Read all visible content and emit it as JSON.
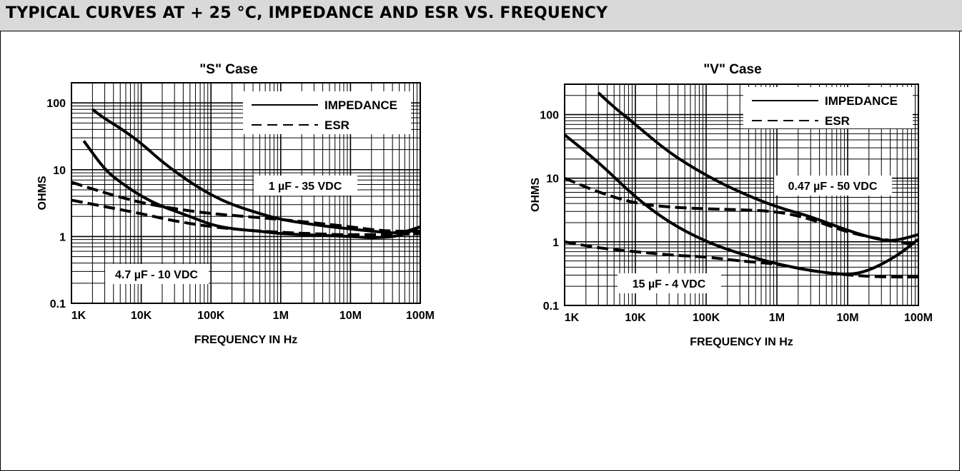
{
  "header": {
    "title": "TYPICAL CURVES AT + 25 °C, IMPEDANCE AND ESR VS. FREQUENCY"
  },
  "chart_data": [
    {
      "type": "line",
      "title": "\"S\" Case",
      "xlabel": "FREQUENCY IN Hz",
      "ylabel": "OHMS",
      "x_scale": "log",
      "y_scale": "log",
      "xlim": [
        1000,
        100000000
      ],
      "ylim": [
        0.1,
        200
      ],
      "x_ticks": [
        "1K",
        "10K",
        "100K",
        "1M",
        "10M",
        "100M"
      ],
      "y_ticks": [
        "0.1",
        "1",
        "10",
        "100"
      ],
      "legend": {
        "position": "top-right",
        "entries": [
          {
            "label": "IMPEDANCE",
            "style": "solid"
          },
          {
            "label": "ESR",
            "style": "dashed"
          }
        ]
      },
      "annotations": [
        "1 µF - 35 VDC",
        "4.7 µF - 10 VDC"
      ],
      "series": [
        {
          "label": "1 µF - 35 VDC",
          "kind": "impedance",
          "style": "solid",
          "x": [
            2000,
            3000,
            5000,
            10000,
            20000,
            50000,
            100000,
            200000,
            500000,
            1000000,
            2000000,
            5000000,
            10000000,
            20000000,
            50000000,
            100000000
          ],
          "y": [
            80,
            58,
            42,
            25,
            13,
            6.5,
            4.2,
            3,
            2.2,
            1.8,
            1.6,
            1.4,
            1.3,
            1.2,
            1.1,
            1.4
          ]
        },
        {
          "label": "1 µF - 35 VDC",
          "kind": "esr",
          "style": "dashed",
          "x": [
            1000,
            3000,
            10000,
            30000,
            100000,
            300000,
            1000000,
            3000000,
            10000000,
            30000000,
            100000000
          ],
          "y": [
            6.5,
            4.5,
            3.2,
            2.6,
            2.2,
            2,
            1.8,
            1.6,
            1.4,
            1.2,
            1.2
          ]
        },
        {
          "label": "4.7 µF - 10 VDC",
          "kind": "impedance",
          "style": "solid",
          "x": [
            1500,
            3000,
            5000,
            10000,
            20000,
            50000,
            100000,
            200000,
            500000,
            1000000,
            3000000,
            10000000,
            20000000,
            50000000,
            100000000
          ],
          "y": [
            27,
            10,
            6.5,
            4,
            2.8,
            2,
            1.5,
            1.3,
            1.2,
            1.1,
            1.05,
            1,
            0.95,
            1,
            1.4
          ]
        },
        {
          "label": "4.7 µF - 10 VDC",
          "kind": "esr",
          "style": "dashed",
          "x": [
            1000,
            3000,
            10000,
            30000,
            100000,
            300000,
            1000000,
            3000000,
            10000000,
            100000000
          ],
          "y": [
            3.5,
            2.8,
            2.2,
            1.7,
            1.4,
            1.25,
            1.15,
            1.1,
            1.05,
            1.1
          ]
        }
      ]
    },
    {
      "type": "line",
      "title": "\"V\" Case",
      "xlabel": "FREQUENCY IN Hz",
      "ylabel": "OHMS",
      "x_scale": "log",
      "y_scale": "log",
      "xlim": [
        1000,
        100000000
      ],
      "ylim": [
        0.1,
        300
      ],
      "x_ticks": [
        "1K",
        "10K",
        "100K",
        "1M",
        "10M",
        "100M"
      ],
      "y_ticks": [
        "0.1",
        "1",
        "10",
        "100"
      ],
      "legend": {
        "position": "top-right",
        "entries": [
          {
            "label": "IMPEDANCE",
            "style": "solid"
          },
          {
            "label": "ESR",
            "style": "dashed"
          }
        ]
      },
      "annotations": [
        "0.47 µF - 50 VDC",
        "15 µF - 4 VDC"
      ],
      "series": [
        {
          "label": "0.47 µF - 50 VDC",
          "kind": "impedance",
          "style": "solid",
          "x": [
            3000,
            5000,
            10000,
            30000,
            100000,
            300000,
            1000000,
            3000000,
            10000000,
            30000000,
            50000000,
            100000000
          ],
          "y": [
            220,
            130,
            70,
            25,
            11,
            6,
            3.5,
            2.5,
            1.5,
            1.05,
            1.05,
            1.3
          ]
        },
        {
          "label": "0.47 µF - 50 VDC",
          "kind": "esr",
          "style": "dashed",
          "x": [
            1000,
            3000,
            10000,
            30000,
            100000,
            300000,
            1000000,
            3000000,
            10000000,
            30000000,
            100000000
          ],
          "y": [
            10,
            6,
            4,
            3.5,
            3.3,
            3.2,
            3,
            2.3,
            1.4,
            1.1,
            0.9
          ]
        },
        {
          "label": "15 µF - 4 VDC",
          "kind": "impedance",
          "style": "solid",
          "x": [
            1000,
            3000,
            10000,
            30000,
            100000,
            300000,
            1000000,
            3000000,
            10000000,
            20000000,
            50000000,
            100000000
          ],
          "y": [
            48,
            18,
            5,
            2,
            1,
            0.65,
            0.45,
            0.35,
            0.3,
            0.35,
            0.6,
            1.1
          ]
        },
        {
          "label": "15 µF - 4 VDC",
          "kind": "esr",
          "style": "dashed",
          "x": [
            1000,
            3000,
            10000,
            30000,
            100000,
            300000,
            1000000,
            3000000,
            10000000,
            30000000,
            100000000
          ],
          "y": [
            1,
            0.8,
            0.7,
            0.62,
            0.58,
            0.5,
            0.45,
            0.35,
            0.3,
            0.28,
            0.28
          ]
        }
      ]
    }
  ]
}
